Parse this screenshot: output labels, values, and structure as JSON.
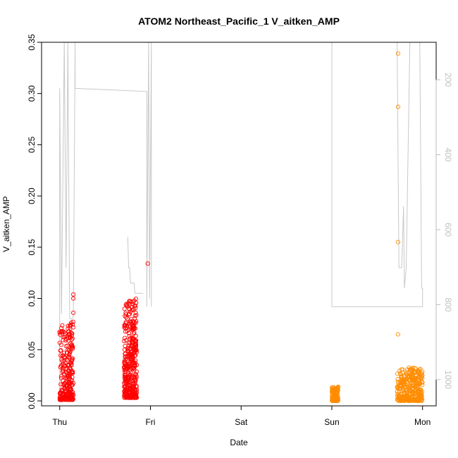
{
  "chart_data": {
    "type": "scatter",
    "title": "ATOM2 Northeast_Pacific_1 V_aitken_AMP",
    "xlabel": "Date",
    "ylabel": "V_aitken_AMP",
    "ylim": [
      0,
      0.35
    ],
    "y_ticks": [
      "0.00",
      "0.05",
      "0.10",
      "0.15",
      "0.20",
      "0.25",
      "0.30",
      "0.35"
    ],
    "x_ticks": [
      "Thu",
      "Fri",
      "Sat",
      "Sun",
      "Mon"
    ],
    "x_range_days": [
      -0.2,
      4.15
    ],
    "secondary_y": {
      "reversed": true,
      "ticks": [
        "200",
        "400",
        "600",
        "800",
        "1000"
      ],
      "range": [
        100,
        1070
      ]
    },
    "colors": {
      "series_red": "#ff0000",
      "series_orange": "#ff8c00",
      "altitude": "#c8c8c8",
      "axis": "#000000",
      "secondary_axis": "#bdbdbd"
    },
    "series": [
      {
        "color": "red",
        "clusters": [
          {
            "x_start": 0.0,
            "x_end": 0.15,
            "y_min": 0.001,
            "y_max": 0.078,
            "n": 260
          },
          {
            "x_start": 0.71,
            "x_end": 0.85,
            "y_min": 0.003,
            "y_max": 0.1,
            "n": 380
          }
        ],
        "outliers": [
          {
            "x": 0.15,
            "y": 0.104
          },
          {
            "x": 0.15,
            "y": 0.1
          },
          {
            "x": 0.15,
            "y": 0.086
          },
          {
            "x": 0.97,
            "y": 0.134
          }
        ]
      },
      {
        "color": "orange",
        "clusters": [
          {
            "x_start": 3.0,
            "x_end": 3.07,
            "y_min": 0.0,
            "y_max": 0.014,
            "n": 120
          },
          {
            "x_start": 3.72,
            "x_end": 4.0,
            "y_min": 0.0,
            "y_max": 0.033,
            "n": 320
          }
        ],
        "outliers": [
          {
            "x": 3.73,
            "y": 0.339
          },
          {
            "x": 3.73,
            "y": 0.287
          },
          {
            "x": 3.73,
            "y": 0.155
          },
          {
            "x": 3.73,
            "y": 0.065
          }
        ]
      }
    ],
    "altitude_line": [
      [
        0.0,
        0.0
      ],
      [
        0.0,
        0.305
      ],
      [
        0.02,
        0.085
      ],
      [
        0.05,
        0.35
      ],
      [
        0.07,
        0.13
      ],
      [
        0.09,
        0.35
      ],
      [
        0.11,
        0.08
      ],
      [
        0.13,
        0.08
      ],
      [
        0.15,
        0.082
      ],
      [
        0.17,
        0.35
      ],
      [
        0.17,
        0.305
      ],
      [
        0.96,
        0.302
      ],
      [
        0.96,
        0.092
      ],
      [
        0.98,
        0.35
      ],
      [
        0.99,
        0.1
      ],
      [
        1.01,
        0.35
      ],
      [
        1.01,
        0.092
      ],
      [
        0.75,
        0.16
      ],
      [
        0.76,
        0.13
      ],
      [
        0.77,
        0.13
      ],
      [
        0.78,
        0.115
      ],
      [
        0.82,
        0.115
      ],
      [
        0.83,
        0.105
      ],
      [
        0.92,
        0.105
      ],
      [
        3.0,
        0.35
      ],
      [
        3.0,
        0.092
      ],
      [
        4.0,
        0.092
      ],
      [
        4.0,
        0.11
      ],
      [
        3.99,
        0.11
      ],
      [
        3.97,
        0.35
      ],
      [
        3.72,
        0.35
      ],
      [
        3.74,
        0.13
      ],
      [
        3.77,
        0.13
      ],
      [
        3.79,
        0.19
      ],
      [
        3.8,
        0.11
      ],
      [
        3.82,
        0.13
      ],
      [
        3.86,
        0.35
      ]
    ]
  }
}
